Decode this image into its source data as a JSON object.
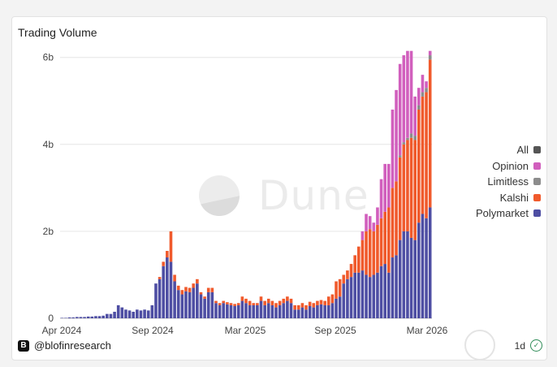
{
  "title": "Trading Volume",
  "watermark": "Dune",
  "footer": {
    "handle": "@blofinresearch",
    "interval": "1d"
  },
  "legend": [
    {
      "label": "All",
      "color": "#555555"
    },
    {
      "label": "Opinion",
      "color": "#d15fbd"
    },
    {
      "label": "Limitless",
      "color": "#8c8c8c"
    },
    {
      "label": "Kalshi",
      "color": "#f05a2c"
    },
    {
      "label": "Polymarket",
      "color": "#4e4ea3"
    }
  ],
  "chart_data": {
    "type": "bar",
    "stacked": true,
    "title": "Trading Volume",
    "yunit": "b",
    "ylim": [
      0,
      6.2
    ],
    "yticks": [
      0,
      2,
      4,
      6
    ],
    "ytick_labels": [
      "0",
      "2b",
      "4b",
      "6b"
    ],
    "xtick_labels": [
      "Apr 2024",
      "Sep 2024",
      "Mar 2025",
      "Sep 2025",
      "Mar 2026"
    ],
    "grid": true,
    "legend_position": "right",
    "x_start": "2024-04",
    "x_end": "2026-03",
    "series": [
      {
        "name": "Polymarket",
        "color": "#4e4ea3",
        "values": [
          0.01,
          0.01,
          0.02,
          0.02,
          0.03,
          0.03,
          0.03,
          0.04,
          0.04,
          0.05,
          0.05,
          0.06,
          0.1,
          0.1,
          0.15,
          0.3,
          0.25,
          0.2,
          0.18,
          0.15,
          0.2,
          0.18,
          0.2,
          0.18,
          0.3,
          0.8,
          0.9,
          1.2,
          1.4,
          1.3,
          0.85,
          0.65,
          0.55,
          0.62,
          0.6,
          0.7,
          0.8,
          0.55,
          0.45,
          0.6,
          0.6,
          0.35,
          0.3,
          0.35,
          0.32,
          0.3,
          0.28,
          0.3,
          0.4,
          0.35,
          0.3,
          0.3,
          0.3,
          0.4,
          0.3,
          0.35,
          0.3,
          0.25,
          0.3,
          0.35,
          0.4,
          0.35,
          0.2,
          0.2,
          0.25,
          0.2,
          0.28,
          0.25,
          0.3,
          0.32,
          0.3,
          0.3,
          0.35,
          0.45,
          0.5,
          0.8,
          0.9,
          0.95,
          1.05,
          1.05,
          1.1,
          1.0,
          0.95,
          1.0,
          1.05,
          1.2,
          1.25,
          1.05,
          1.4,
          1.45,
          1.8,
          2.0,
          2.0,
          1.85,
          1.8,
          2.2,
          2.4,
          2.3,
          2.55
        ]
      },
      {
        "name": "Kalshi",
        "color": "#f05a2c",
        "values": [
          0,
          0,
          0,
          0,
          0,
          0,
          0,
          0,
          0,
          0,
          0,
          0,
          0,
          0,
          0,
          0,
          0,
          0,
          0,
          0,
          0,
          0,
          0,
          0,
          0,
          0,
          0.05,
          0.1,
          0.15,
          0.7,
          0.15,
          0.1,
          0.1,
          0.1,
          0.1,
          0.1,
          0.1,
          0.05,
          0.05,
          0.1,
          0.1,
          0.05,
          0.05,
          0.05,
          0.05,
          0.05,
          0.05,
          0.05,
          0.1,
          0.1,
          0.1,
          0.05,
          0.05,
          0.1,
          0.1,
          0.1,
          0.1,
          0.1,
          0.1,
          0.1,
          0.1,
          0.1,
          0.1,
          0.1,
          0.1,
          0.1,
          0.1,
          0.1,
          0.1,
          0.1,
          0.1,
          0.2,
          0.2,
          0.4,
          0.4,
          0.2,
          0.2,
          0.3,
          0.4,
          0.6,
          0.7,
          1.0,
          1.1,
          1.0,
          1.1,
          1.1,
          1.2,
          1.5,
          1.6,
          1.7,
          1.9,
          2.0,
          2.1,
          2.3,
          2.3,
          2.6,
          2.7,
          2.9,
          3.4
        ]
      },
      {
        "name": "Limitless",
        "color": "#8c8c8c",
        "values": [
          0,
          0,
          0,
          0,
          0,
          0,
          0,
          0,
          0,
          0,
          0,
          0,
          0,
          0,
          0,
          0,
          0,
          0,
          0,
          0,
          0,
          0,
          0,
          0,
          0,
          0,
          0,
          0,
          0,
          0,
          0,
          0,
          0,
          0,
          0,
          0,
          0,
          0,
          0,
          0,
          0,
          0,
          0,
          0,
          0,
          0,
          0,
          0,
          0,
          0,
          0,
          0,
          0,
          0,
          0,
          0,
          0,
          0,
          0,
          0,
          0,
          0,
          0,
          0,
          0,
          0,
          0,
          0,
          0,
          0,
          0,
          0,
          0,
          0,
          0,
          0,
          0,
          0,
          0,
          0,
          0,
          0,
          0,
          0,
          0,
          0,
          0,
          0,
          0,
          0,
          0.05,
          0.05,
          0.05,
          0.1,
          0.1,
          0.1,
          0.1,
          0.1,
          0.1
        ]
      },
      {
        "name": "Opinion",
        "color": "#d15fbd",
        "values": [
          0,
          0,
          0,
          0,
          0,
          0,
          0,
          0,
          0,
          0,
          0,
          0,
          0,
          0,
          0,
          0,
          0,
          0,
          0,
          0,
          0,
          0,
          0,
          0,
          0,
          0,
          0,
          0,
          0,
          0,
          0,
          0,
          0,
          0,
          0,
          0,
          0,
          0,
          0,
          0,
          0,
          0,
          0,
          0,
          0,
          0,
          0,
          0,
          0,
          0,
          0,
          0,
          0,
          0,
          0,
          0,
          0,
          0,
          0,
          0,
          0,
          0,
          0,
          0,
          0,
          0,
          0,
          0,
          0,
          0,
          0,
          0,
          0,
          0,
          0,
          0,
          0,
          0,
          0,
          0,
          0.2,
          0.4,
          0.3,
          0.2,
          0.4,
          0.9,
          1.1,
          1.0,
          1.8,
          2.1,
          2.1,
          2.0,
          2.0,
          1.9,
          0.9,
          0.4,
          0.4,
          0.15,
          0.1
        ]
      }
    ]
  }
}
